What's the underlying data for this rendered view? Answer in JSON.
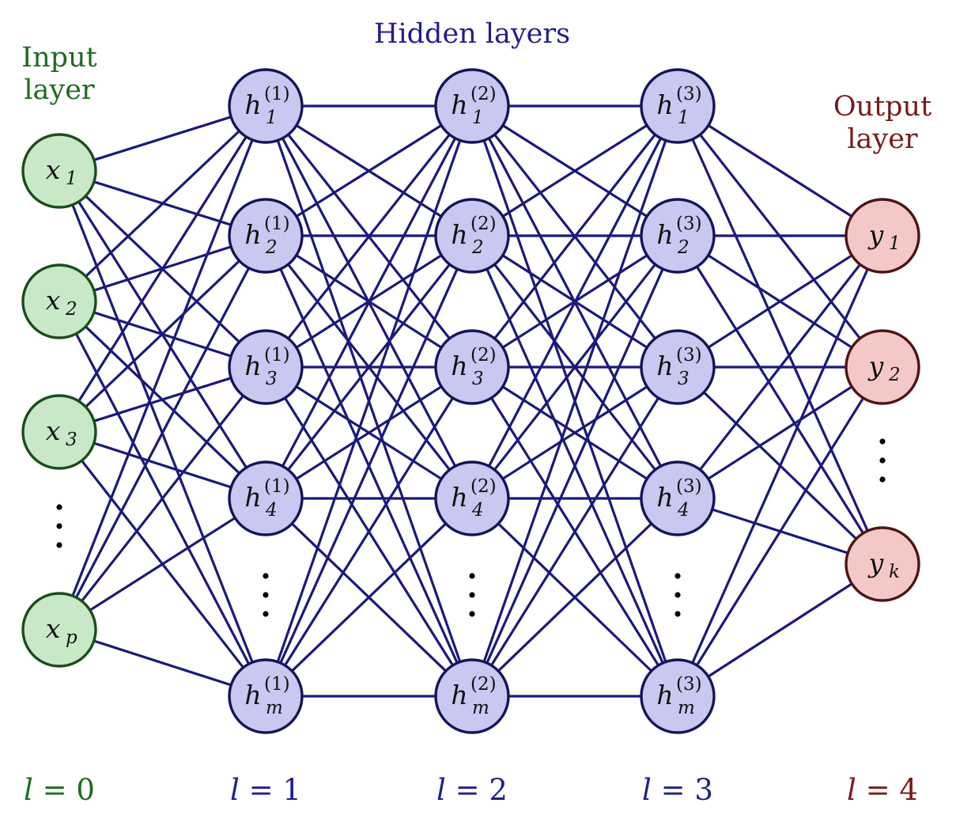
{
  "labels": {
    "input": [
      "Input",
      "layer"
    ],
    "hidden": "Hidden layers",
    "output": [
      "Output",
      "layer"
    ]
  },
  "colors": {
    "input_text": "#1f6b1f",
    "hidden_text": "#1f1f8a",
    "output_text": "#7a1a1a",
    "edge": "#1a1a7a"
  },
  "layers": [
    {
      "id": "input",
      "layer_label": {
        "var": "l",
        "eq": " = ",
        "num": "0"
      },
      "nodes": [
        {
          "main": "x",
          "sub": "1"
        },
        {
          "main": "x",
          "sub": "2"
        },
        {
          "main": "x",
          "sub": "3"
        },
        {
          "ellipsis": true
        },
        {
          "main": "x",
          "sub": "p"
        }
      ]
    },
    {
      "id": "hidden1",
      "layer_label": {
        "var": "l",
        "eq": " = ",
        "num": "1"
      },
      "nodes": [
        {
          "main": "h",
          "sub": "1",
          "sup": "(1)"
        },
        {
          "main": "h",
          "sub": "2",
          "sup": "(1)"
        },
        {
          "main": "h",
          "sub": "3",
          "sup": "(1)"
        },
        {
          "main": "h",
          "sub": "4",
          "sup": "(1)"
        },
        {
          "ellipsis": true
        },
        {
          "main": "h",
          "sub": "m",
          "sup": "(1)"
        }
      ]
    },
    {
      "id": "hidden2",
      "layer_label": {
        "var": "l",
        "eq": " = ",
        "num": "2"
      },
      "nodes": [
        {
          "main": "h",
          "sub": "1",
          "sup": "(2)"
        },
        {
          "main": "h",
          "sub": "2",
          "sup": "(2)"
        },
        {
          "main": "h",
          "sub": "3",
          "sup": "(2)"
        },
        {
          "main": "h",
          "sub": "4",
          "sup": "(2)"
        },
        {
          "ellipsis": true
        },
        {
          "main": "h",
          "sub": "m",
          "sup": "(2)"
        }
      ]
    },
    {
      "id": "hidden3",
      "layer_label": {
        "var": "l",
        "eq": " = ",
        "num": "3"
      },
      "nodes": [
        {
          "main": "h",
          "sub": "1",
          "sup": "(3)"
        },
        {
          "main": "h",
          "sub": "2",
          "sup": "(3)"
        },
        {
          "main": "h",
          "sub": "3",
          "sup": "(3)"
        },
        {
          "main": "h",
          "sub": "4",
          "sup": "(3)"
        },
        {
          "ellipsis": true
        },
        {
          "main": "h",
          "sub": "m",
          "sup": "(3)"
        }
      ]
    },
    {
      "id": "output",
      "layer_label": {
        "var": "l",
        "eq": " = ",
        "num": "4"
      },
      "nodes": [
        {
          "main": "y",
          "sub": "1"
        },
        {
          "main": "y",
          "sub": "2"
        },
        {
          "ellipsis": true
        },
        {
          "main": "y",
          "sub": "k"
        }
      ]
    }
  ],
  "connectivity": "fully-connected"
}
